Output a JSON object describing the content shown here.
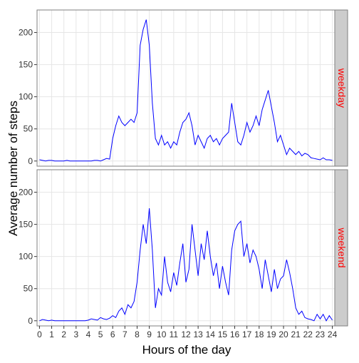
{
  "chart_data": {
    "type": "line",
    "xlabel": "Hours of the day",
    "ylabel": "Average number of steps",
    "x": [
      0,
      0.25,
      0.5,
      0.75,
      1,
      1.25,
      1.5,
      1.75,
      2,
      2.25,
      2.5,
      2.75,
      3,
      3.25,
      3.5,
      3.75,
      4,
      4.25,
      4.5,
      4.75,
      5,
      5.25,
      5.5,
      5.75,
      6,
      6.25,
      6.5,
      6.75,
      7,
      7.25,
      7.5,
      7.75,
      8,
      8.25,
      8.5,
      8.75,
      9,
      9.25,
      9.5,
      9.75,
      10,
      10.25,
      10.5,
      10.75,
      11,
      11.25,
      11.5,
      11.75,
      12,
      12.25,
      12.5,
      12.75,
      13,
      13.25,
      13.5,
      13.75,
      14,
      14.25,
      14.5,
      14.75,
      15,
      15.25,
      15.5,
      15.75,
      16,
      16.25,
      16.5,
      16.75,
      17,
      17.25,
      17.5,
      17.75,
      18,
      18.25,
      18.5,
      18.75,
      19,
      19.25,
      19.5,
      19.75,
      20,
      20.25,
      20.5,
      20.75,
      21,
      21.25,
      21.5,
      21.75,
      22,
      22.25,
      22.5,
      22.75,
      23,
      23.25,
      23.5,
      23.75,
      24
    ],
    "series": [
      {
        "name": "weekday",
        "color": "#0000ff",
        "values": [
          2,
          1,
          0,
          1,
          1,
          0,
          0,
          0,
          0,
          1,
          0,
          0,
          0,
          0,
          0,
          0,
          0,
          0,
          1,
          1,
          0,
          2,
          4,
          3,
          35,
          55,
          70,
          60,
          55,
          60,
          65,
          60,
          75,
          180,
          205,
          220,
          180,
          90,
          35,
          25,
          40,
          25,
          30,
          20,
          30,
          25,
          45,
          60,
          65,
          75,
          55,
          25,
          40,
          30,
          20,
          35,
          40,
          30,
          35,
          25,
          35,
          40,
          45,
          90,
          60,
          30,
          25,
          40,
          60,
          45,
          55,
          70,
          55,
          80,
          95,
          110,
          85,
          60,
          30,
          40,
          25,
          10,
          20,
          15,
          10,
          15,
          8,
          12,
          10,
          5,
          4,
          3,
          2,
          5,
          2,
          2,
          1
        ]
      },
      {
        "name": "weekend",
        "color": "#0000ff",
        "values": [
          0,
          2,
          1,
          0,
          1,
          0,
          0,
          0,
          0,
          0,
          0,
          0,
          0,
          0,
          0,
          0,
          1,
          3,
          2,
          1,
          5,
          3,
          2,
          4,
          8,
          5,
          15,
          20,
          10,
          25,
          20,
          30,
          60,
          110,
          150,
          120,
          175,
          110,
          20,
          50,
          40,
          100,
          60,
          45,
          75,
          55,
          90,
          120,
          60,
          80,
          150,
          110,
          70,
          120,
          95,
          140,
          100,
          70,
          90,
          50,
          85,
          60,
          40,
          110,
          140,
          150,
          155,
          100,
          120,
          90,
          110,
          100,
          80,
          50,
          95,
          70,
          45,
          80,
          50,
          65,
          70,
          95,
          75,
          50,
          20,
          10,
          15,
          5,
          3,
          2,
          0,
          10,
          3,
          10,
          0,
          8,
          1
        ]
      }
    ],
    "xlim": [
      -0.2,
      24.2
    ],
    "xticks": [
      0,
      1,
      2,
      3,
      4,
      5,
      6,
      7,
      8,
      9,
      10,
      11,
      12,
      13,
      14,
      15,
      16,
      17,
      18,
      19,
      20,
      21,
      22,
      23,
      24
    ],
    "ylim": [
      -8,
      235
    ],
    "yticks": [
      0,
      50,
      100,
      150,
      200
    ],
    "grid": true
  }
}
